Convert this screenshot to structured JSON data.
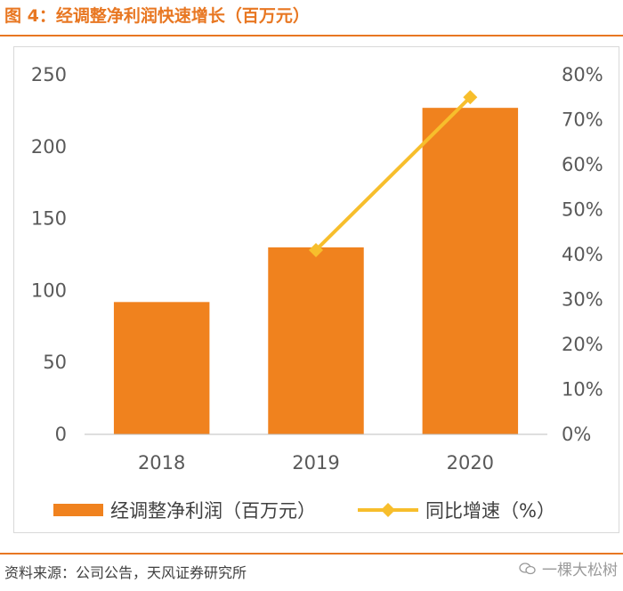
{
  "figure": {
    "title": "图 4：经调整净利润快速增长（百万元）",
    "source": "资料来源：公司公告，天风证券研究所",
    "watermark": "一棵大松树",
    "watermark_icon": "wechat-icon"
  },
  "colors": {
    "bar": "#f0821e",
    "line": "#f7be2c",
    "accent": "#e87722",
    "frame": "#d9d9d9",
    "axis": "#bfbfbf",
    "text": "#595959"
  },
  "chart_data": {
    "type": "bar",
    "categories": [
      "2018",
      "2019",
      "2020"
    ],
    "series": [
      {
        "name": "经调整净利润（百万元）",
        "type": "bar",
        "axis": "left",
        "values": [
          92,
          130,
          227
        ]
      },
      {
        "name": "同比增速（%）",
        "type": "line",
        "axis": "right",
        "marker": "diamond",
        "values": [
          null,
          41,
          75
        ]
      }
    ],
    "ylim": [
      0,
      250
    ],
    "yticks": [
      "0",
      "50",
      "100",
      "150",
      "200",
      "250"
    ],
    "y2lim": [
      0,
      80
    ],
    "y2ticks": [
      "0%",
      "10%",
      "20%",
      "30%",
      "40%",
      "50%",
      "60%",
      "70%",
      "80%"
    ],
    "grid": false,
    "legend_position": "bottom"
  }
}
